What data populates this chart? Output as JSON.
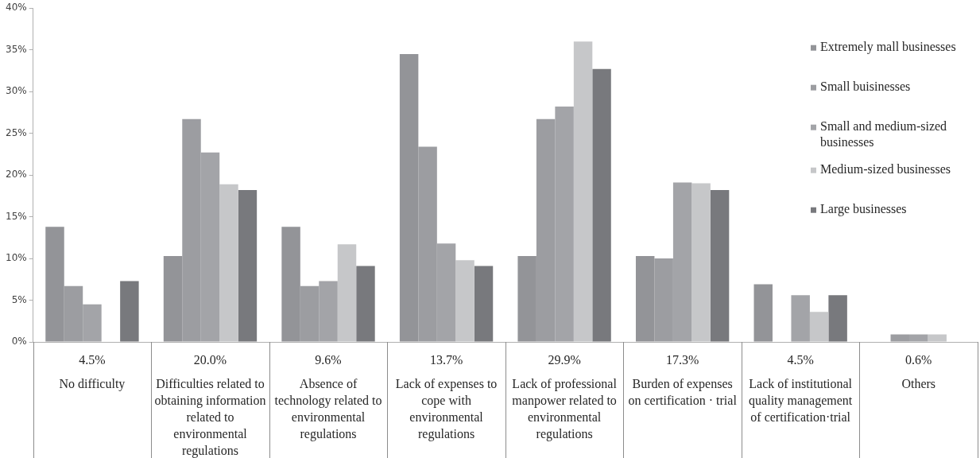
{
  "chart_data": {
    "type": "bar",
    "categories": [
      "No difficulty",
      "Difficulties related to obtaining information related to environmental regulations",
      "Absence of technology related to environmental regulations",
      "Lack of expenses to cope with environmental regulations",
      "Lack of professional manpower related to environmental regulations",
      "Burden of expenses on certification · trial",
      "Lack of institutional quality management of certification·trial",
      "Others"
    ],
    "series": [
      {
        "name": "Extremely mall businesses",
        "color": "#939498",
        "values": [
          13.8,
          10.3,
          13.8,
          34.5,
          10.3,
          10.3,
          6.9,
          0
        ]
      },
      {
        "name": "Small buisinesses",
        "color": "#9c9da1",
        "values": [
          6.7,
          26.7,
          6.7,
          23.4,
          26.7,
          10.0,
          0,
          0.9
        ]
      },
      {
        "name": "Small and medium-sized businesses",
        "color": "#a3a4a8",
        "values": [
          4.5,
          22.7,
          7.3,
          11.8,
          28.2,
          19.1,
          5.6,
          0.9
        ]
      },
      {
        "name": "Medium-sized businesses",
        "color": "#c6c7c9",
        "values": [
          0,
          18.9,
          11.7,
          9.8,
          36.0,
          19.0,
          3.6,
          0.9
        ]
      },
      {
        "name": "Large businesses",
        "color": "#78797d",
        "values": [
          7.3,
          18.2,
          9.1,
          9.1,
          32.7,
          18.2,
          5.6,
          0
        ]
      }
    ],
    "ylim": [
      0,
      40
    ],
    "yticks": [
      {
        "value": 0,
        "label": "0%"
      },
      {
        "value": 5,
        "label": "5%"
      },
      {
        "value": 10,
        "label": "10%"
      },
      {
        "value": 15,
        "label": "15%"
      },
      {
        "value": 20,
        "label": "20%"
      },
      {
        "value": 25,
        "label": "25%"
      },
      {
        "value": 30,
        "label": "30%"
      },
      {
        "value": 35,
        "label": "35%"
      },
      {
        "value": 40,
        "label": "40%"
      }
    ],
    "annotations": [
      "4.5%",
      "20.0%",
      "9.6%",
      "13.7%",
      "29.9%",
      "17.3%",
      "4.5%",
      "0.6%"
    ],
    "grid": false,
    "legend": "top right"
  }
}
